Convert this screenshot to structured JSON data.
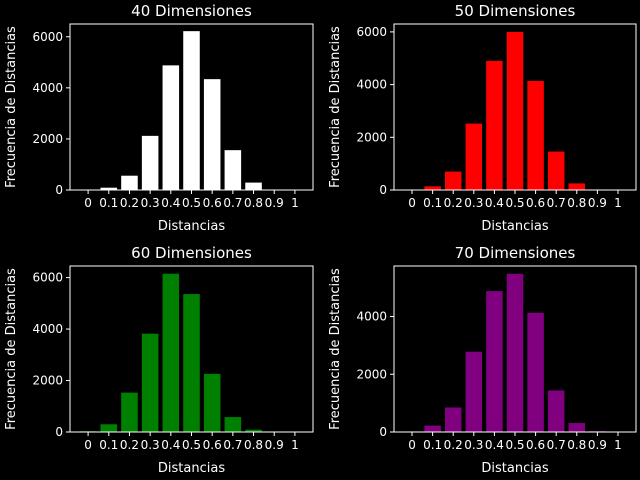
{
  "chart_data": [
    {
      "type": "bar",
      "title": "40 Dimensiones",
      "xlabel": "Distancias",
      "ylabel": "Frecuencia de Distancias",
      "color": "#ffffff",
      "categories": [
        "0",
        "0.1",
        "0.2",
        "0.3",
        "0.4",
        "0.5",
        "0.6",
        "0.7",
        "0.8",
        "0.9",
        "1"
      ],
      "values": [
        10,
        90,
        560,
        2120,
        4880,
        6220,
        4340,
        1560,
        290,
        20,
        0
      ],
      "ylim": [
        0,
        6500
      ],
      "yticks": [
        0,
        2000,
        4000,
        6000
      ]
    },
    {
      "type": "bar",
      "title": "50 Dimensiones",
      "xlabel": "Distancias",
      "ylabel": "Frecuencia de Distancias",
      "color": "#ff0000",
      "categories": [
        "0",
        "0.1",
        "0.2",
        "0.3",
        "0.4",
        "0.5",
        "0.6",
        "0.7",
        "0.8",
        "0.9",
        "1"
      ],
      "values": [
        10,
        140,
        700,
        2520,
        4900,
        6000,
        4140,
        1460,
        250,
        20,
        0
      ],
      "ylim": [
        0,
        6300
      ],
      "yticks": [
        0,
        2000,
        4000,
        6000
      ]
    },
    {
      "type": "bar",
      "title": "60 Dimensiones",
      "xlabel": "Distancias",
      "ylabel": "Frecuencia de Distancias",
      "color": "#008000",
      "categories": [
        "0",
        "0.1",
        "0.2",
        "0.3",
        "0.4",
        "0.5",
        "0.6",
        "0.7",
        "0.8",
        "0.9",
        "1"
      ],
      "values": [
        30,
        300,
        1530,
        3820,
        6150,
        5360,
        2260,
        580,
        90,
        10,
        0
      ],
      "ylim": [
        0,
        6450
      ],
      "yticks": [
        0,
        2000,
        4000,
        6000
      ]
    },
    {
      "type": "bar",
      "title": "70 Dimensiones",
      "xlabel": "Distancias",
      "ylabel": "Frecuencia de Distancias",
      "color": "#800080",
      "categories": [
        "0",
        "0.1",
        "0.2",
        "0.3",
        "0.4",
        "0.5",
        "0.6",
        "0.7",
        "0.8",
        "0.9",
        "1"
      ],
      "values": [
        20,
        220,
        850,
        2780,
        4880,
        5480,
        4130,
        1440,
        310,
        30,
        0
      ],
      "ylim": [
        0,
        5750
      ],
      "yticks": [
        0,
        2000,
        4000
      ]
    }
  ]
}
